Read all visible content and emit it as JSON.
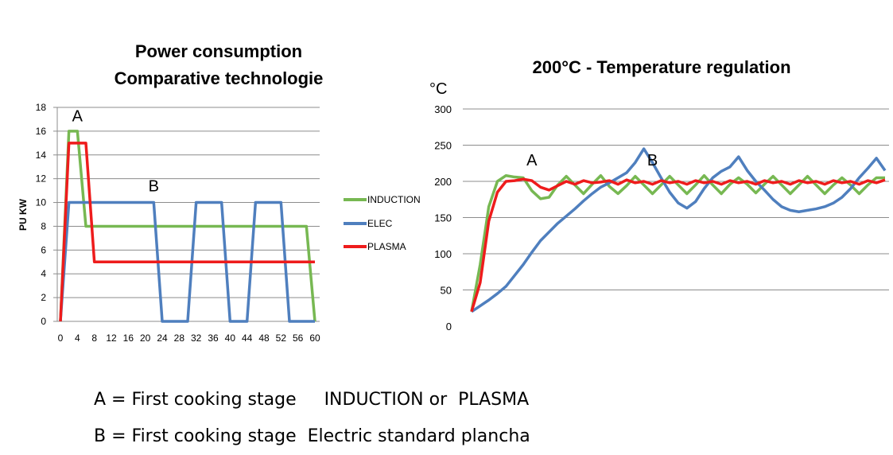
{
  "chart_data": [
    {
      "type": "line",
      "title": [
        "Power consumption",
        "Comparative technologie"
      ],
      "ylabel": "PU KW",
      "ylim": [
        0,
        18
      ],
      "yticks": [
        0,
        2,
        4,
        6,
        8,
        10,
        12,
        14,
        16,
        18
      ],
      "xlim": [
        0,
        60
      ],
      "xticks": [
        0,
        4,
        8,
        12,
        16,
        20,
        24,
        28,
        32,
        36,
        40,
        44,
        48,
        52,
        56,
        60
      ],
      "grid": "horizontal",
      "legend": "right",
      "annotations": [
        {
          "text": "A",
          "x": 4,
          "y": 17.5
        },
        {
          "text": "B",
          "x": 22,
          "y": 11.6
        }
      ],
      "series": [
        {
          "name": "INDUCTION",
          "color": "#77b852",
          "points": [
            [
              0,
              0
            ],
            [
              2,
              16
            ],
            [
              4,
              16
            ],
            [
              6,
              8
            ],
            [
              58,
              8
            ],
            [
              60,
              0
            ]
          ]
        },
        {
          "name": "ELEC",
          "color": "#4f7fbe",
          "points": [
            [
              0,
              0
            ],
            [
              2,
              10
            ],
            [
              22,
              10
            ],
            [
              24,
              0
            ],
            [
              30,
              0
            ],
            [
              32,
              10
            ],
            [
              38,
              10
            ],
            [
              40,
              0
            ],
            [
              44,
              0
            ],
            [
              46,
              10
            ],
            [
              52,
              10
            ],
            [
              54,
              0
            ],
            [
              58,
              0
            ],
            [
              60,
              0
            ]
          ]
        },
        {
          "name": "PLASMA",
          "color": "#ee1c1c",
          "points": [
            [
              0,
              0
            ],
            [
              2,
              15
            ],
            [
              6,
              15
            ],
            [
              8,
              5
            ],
            [
              60,
              5
            ]
          ]
        }
      ]
    },
    {
      "type": "line",
      "title": [
        "200°C  - Temperature regulation"
      ],
      "ylabel": "°C",
      "ylim": [
        0,
        300
      ],
      "yticks": [
        0,
        50,
        100,
        150,
        200,
        250,
        300
      ],
      "grid": "horizontal",
      "annotations": [
        {
          "text": "A",
          "x": 7,
          "y": 235
        },
        {
          "text": "B",
          "x": 21,
          "y": 235
        }
      ],
      "x": [
        0,
        1,
        2,
        3,
        4,
        5,
        6,
        7,
        8,
        9,
        10,
        11,
        12,
        13,
        14,
        15,
        16,
        17,
        18,
        19,
        20,
        21,
        22,
        23,
        24,
        25,
        26,
        27,
        28,
        29,
        30,
        31,
        32,
        33,
        34,
        35,
        36,
        37,
        38,
        39,
        40,
        41,
        42,
        43,
        44,
        45,
        46,
        47,
        48
      ],
      "series": [
        {
          "name": "INDUCTION",
          "color": "#77b852",
          "values": [
            20,
            85,
            165,
            200,
            208,
            206,
            205,
            187,
            176,
            178,
            195,
            207,
            195,
            183,
            196,
            208,
            193,
            183,
            194,
            207,
            195,
            183,
            195,
            207,
            195,
            183,
            195,
            208,
            195,
            183,
            196,
            205,
            196,
            184,
            196,
            207,
            195,
            183,
            195,
            207,
            195,
            183,
            195,
            205,
            195,
            183,
            195,
            205,
            205
          ]
        },
        {
          "name": "ELEC",
          "color": "#4f7fbe",
          "values": [
            20,
            28,
            36,
            45,
            55,
            70,
            85,
            102,
            118,
            130,
            142,
            152,
            162,
            173,
            183,
            192,
            198,
            205,
            212,
            226,
            245,
            226,
            205,
            185,
            170,
            163,
            172,
            190,
            205,
            214,
            220,
            234,
            215,
            200,
            188,
            175,
            165,
            160,
            158,
            160,
            162,
            165,
            170,
            178,
            190,
            205,
            218,
            232,
            215
          ]
        },
        {
          "name": "PLASMA",
          "color": "#ee1c1c",
          "values": [
            20,
            60,
            145,
            185,
            200,
            201,
            203,
            201,
            192,
            188,
            194,
            200,
            196,
            201,
            198,
            199,
            201,
            196,
            202,
            198,
            200,
            196,
            201,
            198,
            200,
            196,
            201,
            198,
            200,
            196,
            201,
            198,
            200,
            196,
            201,
            198,
            200,
            196,
            201,
            198,
            200,
            196,
            201,
            198,
            200,
            196,
            201,
            198,
            202
          ]
        }
      ]
    }
  ],
  "notes": {
    "a": "A = First cooking stage     INDUCTION or  PLASMA",
    "b": "B = First cooking stage  Electric standard plancha"
  }
}
